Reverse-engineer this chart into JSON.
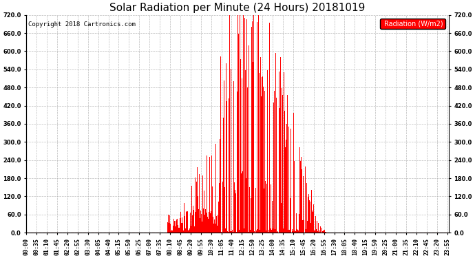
{
  "title": "Solar Radiation per Minute (24 Hours) 20181019",
  "copyright": "Copyright 2018 Cartronics.com",
  "legend_label": "Radiation (W/m2)",
  "bar_color": "#ff0000",
  "bg_color": "#ffffff",
  "grid_color": "#aaaaaa",
  "ylim": [
    0.0,
    720.0
  ],
  "yticks": [
    0.0,
    60.0,
    120.0,
    180.0,
    240.0,
    300.0,
    360.0,
    420.0,
    480.0,
    540.0,
    600.0,
    660.0,
    720.0
  ],
  "title_fontsize": 11,
  "tick_fontsize": 6.0,
  "copyright_fontsize": 6.5
}
